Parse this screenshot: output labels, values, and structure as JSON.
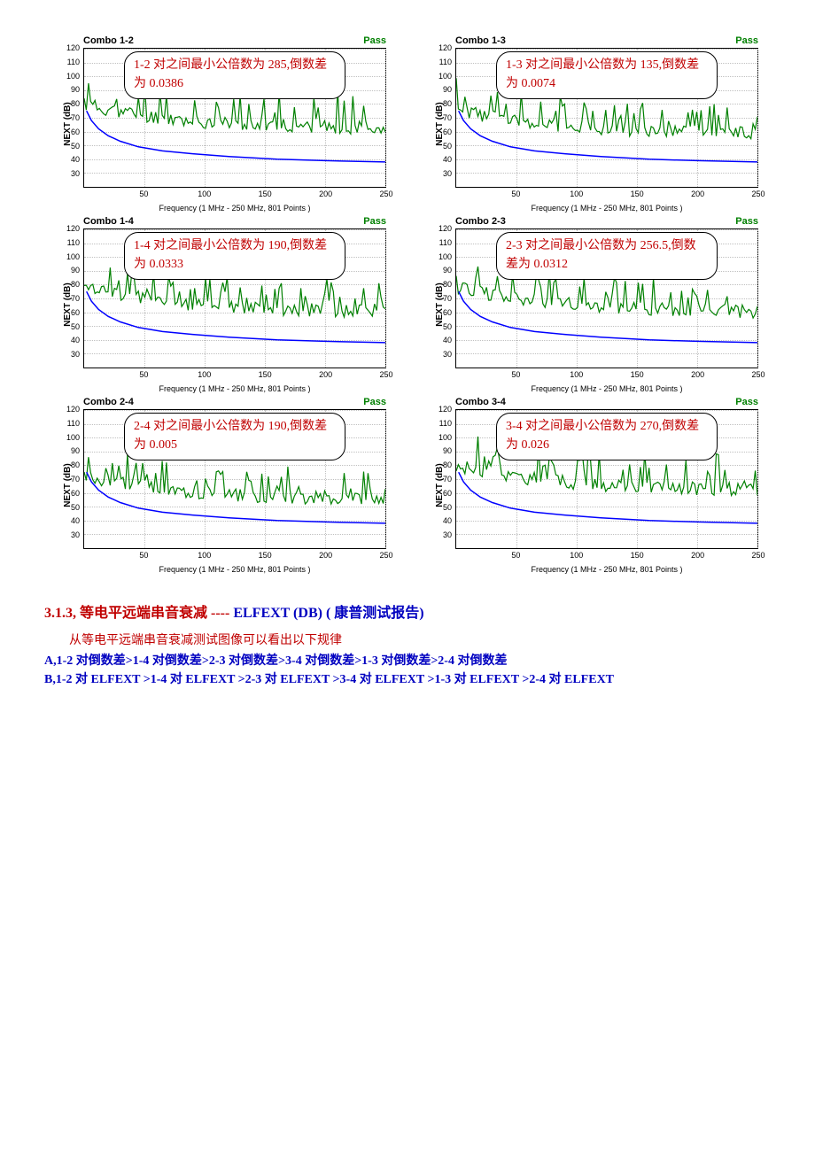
{
  "axis": {
    "ylabel": "NEXT (dB)",
    "xlabel": "Frequency (1 MHz - 250 MHz, 801 Points )",
    "ymin": 20,
    "ymax": 120,
    "xmin": 0,
    "xmax": 250,
    "yticks": [
      30,
      40,
      50,
      60,
      70,
      80,
      90,
      100,
      110,
      120
    ],
    "xticks": [
      50,
      100,
      150,
      200,
      250
    ],
    "grid_color": "#c0c0c0",
    "pass_color": "#008000",
    "title_color": "#000000",
    "data_color": "#008000",
    "limit_color": "#0000ff",
    "data_stroke_width": 1.2,
    "limit_stroke_width": 1.5
  },
  "limit_curve": [
    [
      2,
      75
    ],
    [
      6,
      68
    ],
    [
      12,
      62
    ],
    [
      20,
      57
    ],
    [
      30,
      53
    ],
    [
      45,
      49
    ],
    [
      65,
      46
    ],
    [
      90,
      44
    ],
    [
      120,
      42
    ],
    [
      160,
      40
    ],
    [
      200,
      39
    ],
    [
      250,
      38
    ]
  ],
  "panels": [
    {
      "title": "Combo 1-2",
      "status": "Pass",
      "callout": "1-2 对之间最小公倍数为 285,倒数差为 0.0386",
      "peak_base": 62,
      "peak_amp": 22,
      "trough_floor": 50,
      "seed": 11
    },
    {
      "title": "Combo 1-3",
      "status": "Pass",
      "callout": "1-3 对之间最小公倍数为 135,倒数差为 0.0074",
      "peak_base": 58,
      "peak_amp": 20,
      "trough_floor": 46,
      "seed": 23
    },
    {
      "title": "Combo 1-4",
      "status": "Pass",
      "callout": "1-4 对之间最小公倍数为 190,倒数差为 0.0333",
      "peak_base": 60,
      "peak_amp": 20,
      "trough_floor": 48,
      "seed": 37
    },
    {
      "title": "Combo 2-3",
      "status": "Pass",
      "callout": "2-3 对之间最小公倍数为 256.5,倒数差为 0.0312",
      "peak_base": 60,
      "peak_amp": 20,
      "trough_floor": 48,
      "seed": 51
    },
    {
      "title": "Combo 2-4",
      "status": "Pass",
      "callout": "2-4 对之间最小公倍数为 190,倒数差为 0.005",
      "peak_base": 55,
      "peak_amp": 18,
      "trough_floor": 44,
      "seed": 67
    },
    {
      "title": "Combo 3-4",
      "status": "Pass",
      "callout": "3-4 对之间最小公倍数为 270,倒数差为 0.026",
      "peak_base": 62,
      "peak_amp": 22,
      "trough_floor": 50,
      "seed": 83
    }
  ],
  "heading": {
    "num": "3.1.3,",
    "zh1": " 等电平远端串音衰减",
    "dashes": "----",
    "elfext": "ELFEXT (DB)",
    "report": " ( 康普测试报告)"
  },
  "body": {
    "line1": "从等电平远端串音衰减测试图像可以看出以下规律",
    "lineA": "A,1-2 对倒数差>1-4 对倒数差>2-3 对倒数差>3-4 对倒数差>1-3 对倒数差>2-4 对倒数差",
    "lineB": "B,1-2 对 ELFEXT >1-4 对 ELFEXT >2-3 对 ELFEXT >3-4 对 ELFEXT >1-3 对 ELFEXT >2-4 对 ELFEXT"
  }
}
